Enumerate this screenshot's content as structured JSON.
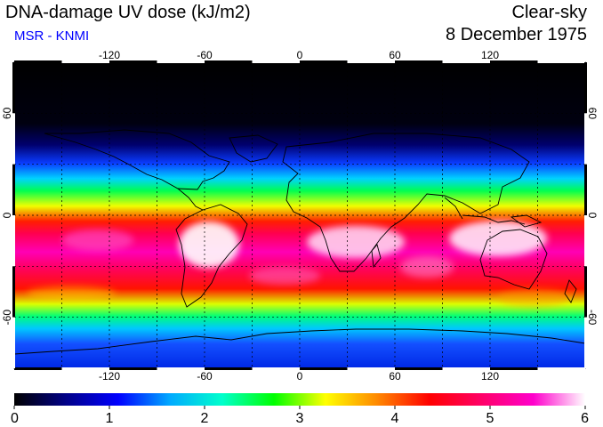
{
  "header": {
    "title": "DNA-damage UV dose (kJ/m2)",
    "credit": "MSR - KNMI",
    "condition": "Clear-sky",
    "date": "8 December 1975"
  },
  "map": {
    "lon_ticks": [
      "-120",
      "-60",
      "0",
      "60",
      "120"
    ],
    "lat_ticks": [
      "60",
      "0",
      "-60"
    ]
  },
  "colorbar": {
    "labels": [
      "0",
      "1",
      "2",
      "3",
      "4",
      "5",
      "6"
    ],
    "min": 0,
    "max": 6,
    "stops": [
      "#000000",
      "#000088",
      "#0000ff",
      "#00aaff",
      "#00ffcc",
      "#00ff00",
      "#ffff00",
      "#ff8800",
      "#ff0000",
      "#ff0066",
      "#ff00cc",
      "#ffffff"
    ]
  }
}
